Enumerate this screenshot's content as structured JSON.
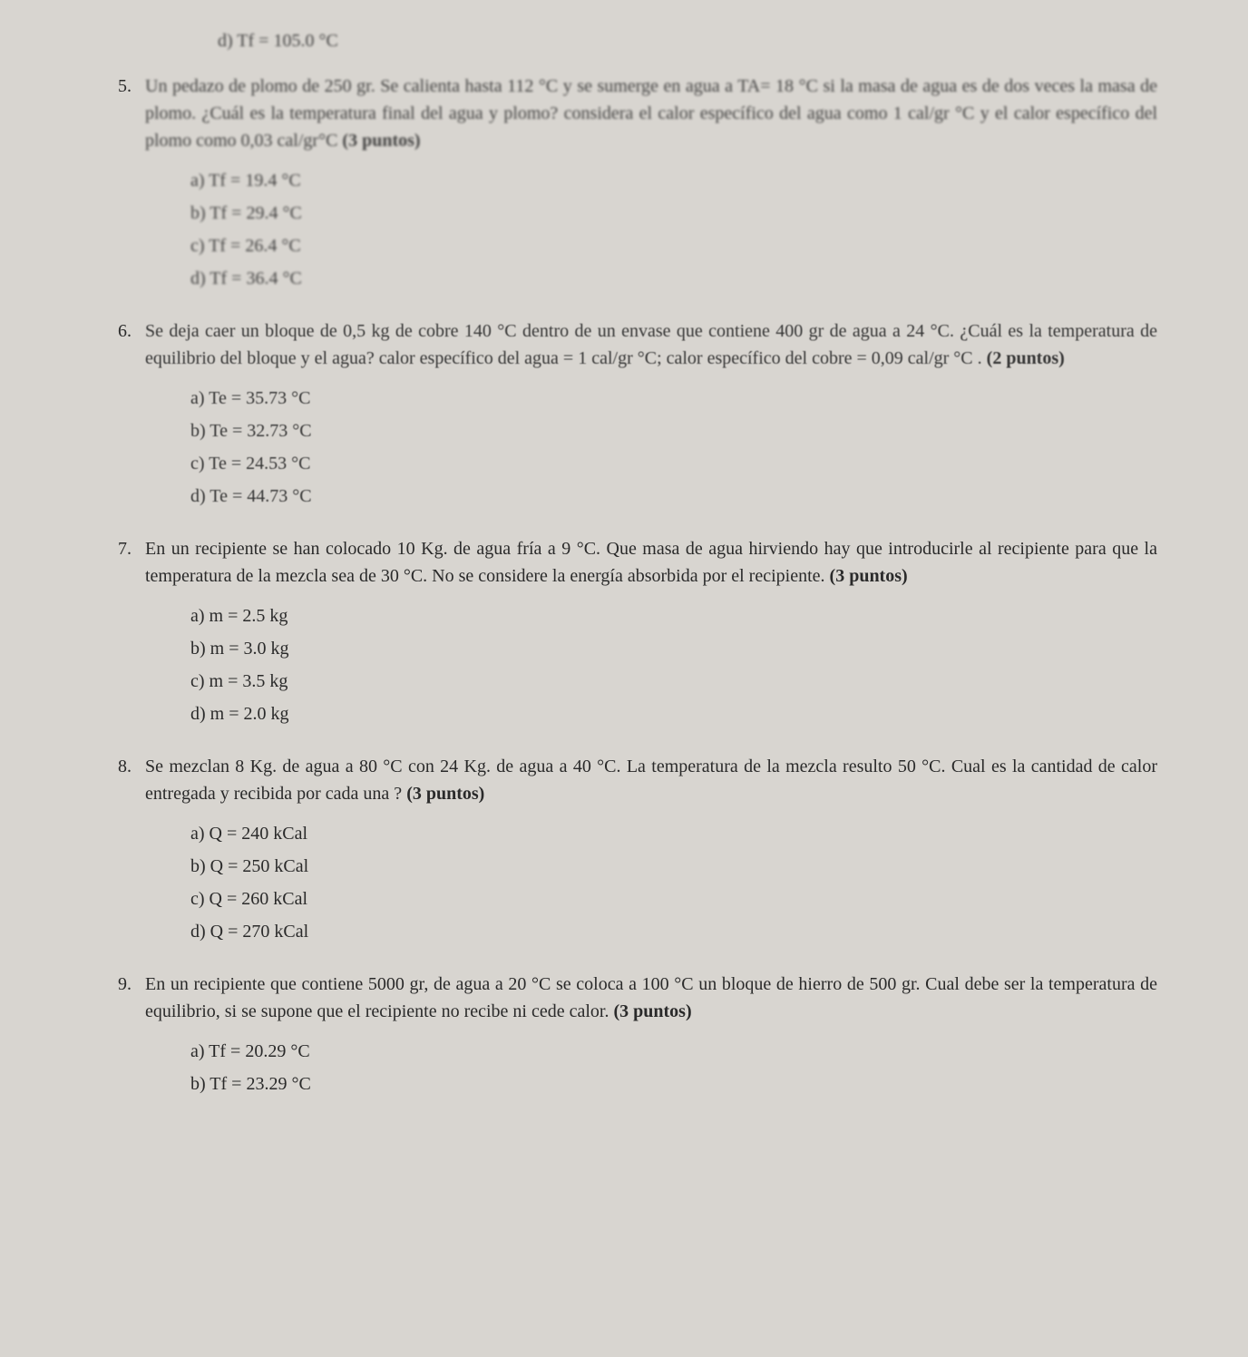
{
  "prev_option_d": "d) Tf = 105.0 °C",
  "q5": {
    "number": "5.",
    "text": "Un pedazo de plomo de 250 gr. Se calienta hasta 112 °C y se sumerge en agua a TA= 18 °C si la masa de agua es de dos veces la masa de plomo. ¿Cuál es la temperatura final del agua y plomo? considera el calor específico del agua como 1 cal/gr °C y el calor específico del plomo como 0,03 cal/gr°C",
    "points": "(3 puntos)",
    "options": {
      "a": "a) Tf = 19.4 °C",
      "b": "b) Tf = 29.4 °C",
      "c": "c) Tf = 26.4 °C",
      "d": "d) Tf = 36.4 °C"
    }
  },
  "q6": {
    "number": "6.",
    "text": "Se deja caer un bloque de 0,5 kg de cobre 140 °C dentro de un envase que contiene 400 gr de agua a 24 °C. ¿Cuál es la temperatura de equilibrio del bloque y el agua? calor específico del agua = 1 cal/gr °C; calor específico del cobre = 0,09 cal/gr °C .",
    "points": "(2 puntos)",
    "options": {
      "a": "a) Te = 35.73 °C",
      "b": "b) Te = 32.73 °C",
      "c": "c) Te = 24.53 °C",
      "d": "d) Te = 44.73 °C"
    }
  },
  "q7": {
    "number": "7.",
    "text": "En un recipiente se han colocado 10 Kg. de agua fría a 9 °C. Que masa de agua hirviendo hay que introducirle al recipiente para que la temperatura de la mezcla sea de 30 °C. No se considere la energía absorbida por el recipiente.",
    "points": "(3 puntos)",
    "options": {
      "a": "a) m = 2.5 kg",
      "b": "b) m = 3.0 kg",
      "c": "c) m = 3.5 kg",
      "d": "d) m = 2.0 kg"
    }
  },
  "q8": {
    "number": "8.",
    "text": "Se mezclan 8 Kg. de agua a 80 °C con 24 Kg. de agua a 40 °C. La temperatura de la mezcla resulto 50 °C. Cual es la cantidad de calor entregada y recibida por cada una ?",
    "points": "(3 puntos)",
    "options": {
      "a": "a) Q = 240 kCal",
      "b": "b) Q = 250 kCal",
      "c": "c) Q = 260 kCal",
      "d": "d) Q = 270 kCal"
    }
  },
  "q9": {
    "number": "9.",
    "text": "En un recipiente que contiene 5000 gr, de agua a 20 °C se coloca a 100 °C un bloque de hierro de 500 gr. Cual debe ser la temperatura de equilibrio, si se supone que el recipiente no recibe ni cede calor.",
    "points": "(3 puntos)",
    "options": {
      "a": "a) Tf = 20.29 °C",
      "b": "b) Tf = 23.29 °C"
    }
  }
}
